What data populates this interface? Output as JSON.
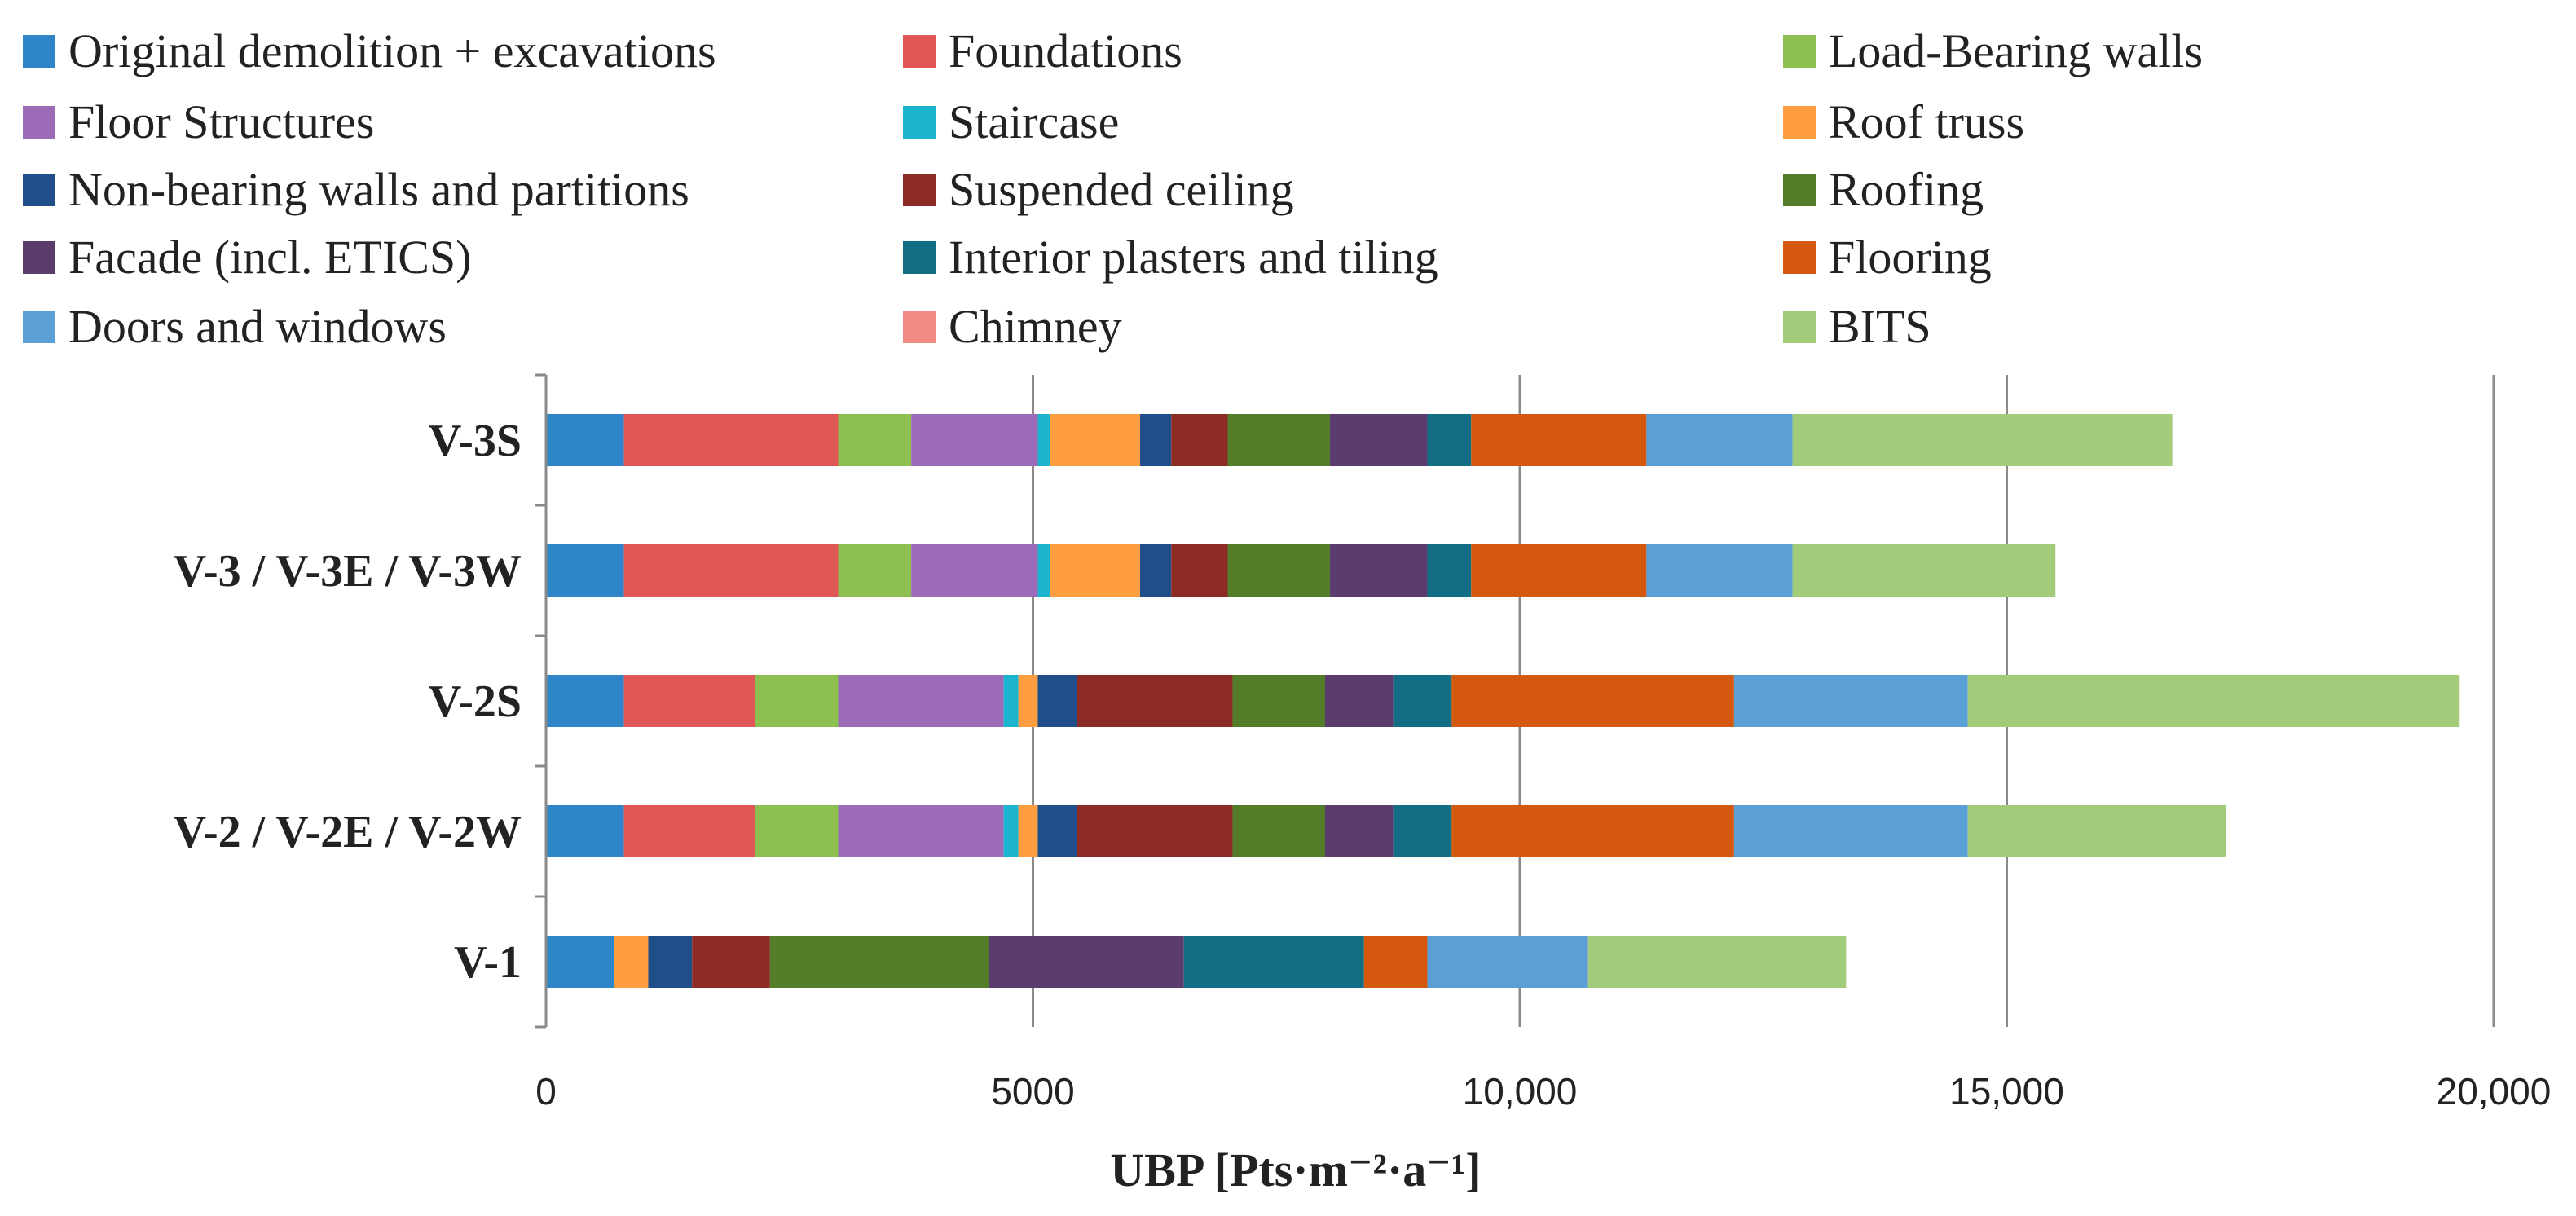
{
  "chart_data": {
    "type": "bar",
    "orientation": "horizontal",
    "stacked": true,
    "title": "",
    "xlabel": "UBP [Pts·m⁻²·a⁻¹]",
    "ylabel": "",
    "xlim": [
      0,
      20000
    ],
    "x_ticks": [
      0,
      5000,
      10000,
      15000,
      20000
    ],
    "x_tick_labels": [
      "0",
      "5000",
      "10,000",
      "15,000",
      "20,000"
    ],
    "grid": "vertical",
    "legend_position": "top",
    "categories": [
      "V-3S",
      "V-3 / V-3E / V-3W",
      "V-2S",
      "V-2 / V-2E / V-2W",
      "V-1"
    ],
    "series": [
      {
        "name": "Original demolition + excavations",
        "color": "#2E86C8",
        "values": [
          800,
          800,
          800,
          800,
          700
        ]
      },
      {
        "name": "Foundations",
        "color": "#E05555",
        "values": [
          2200,
          2200,
          1350,
          1350,
          0
        ]
      },
      {
        "name": "Load-Bearing walls",
        "color": "#8CC152",
        "values": [
          750,
          750,
          850,
          850,
          0
        ]
      },
      {
        "name": "Floor Structures",
        "color": "#9B6BB8",
        "values": [
          1300,
          1300,
          1700,
          1700,
          0
        ]
      },
      {
        "name": "Staircase",
        "color": "#1BB5D0",
        "values": [
          130,
          130,
          150,
          150,
          0
        ]
      },
      {
        "name": "Roof truss",
        "color": "#FF9E40",
        "values": [
          920,
          920,
          200,
          200,
          350
        ]
      },
      {
        "name": "Non-bearing walls and partitions",
        "color": "#1F4E89",
        "values": [
          320,
          320,
          400,
          400,
          450
        ]
      },
      {
        "name": "Suspended ceiling",
        "color": "#8E2A24",
        "values": [
          580,
          580,
          1600,
          1600,
          800
        ]
      },
      {
        "name": "Roofing",
        "color": "#547D2A",
        "values": [
          1050,
          1050,
          950,
          950,
          2250
        ]
      },
      {
        "name": "Facade (incl. ETICS)",
        "color": "#5B3C6E",
        "values": [
          1000,
          1000,
          700,
          700,
          2000
        ]
      },
      {
        "name": "Interior plasters and tiling",
        "color": "#116E85",
        "values": [
          450,
          450,
          600,
          600,
          1850
        ]
      },
      {
        "name": "Flooring",
        "color": "#D4580E",
        "values": [
          1800,
          1800,
          2900,
          2900,
          650
        ]
      },
      {
        "name": "Doors and windows",
        "color": "#5A9FD6",
        "values": [
          1500,
          1500,
          2400,
          2400,
          1650
        ]
      },
      {
        "name": "Chimney",
        "color": "#F08A82",
        "values": [
          0,
          0,
          0,
          0,
          0
        ]
      },
      {
        "name": "BITS",
        "color": "#A2CC7A",
        "values": [
          3900,
          2700,
          5050,
          2650,
          2650
        ]
      }
    ]
  }
}
